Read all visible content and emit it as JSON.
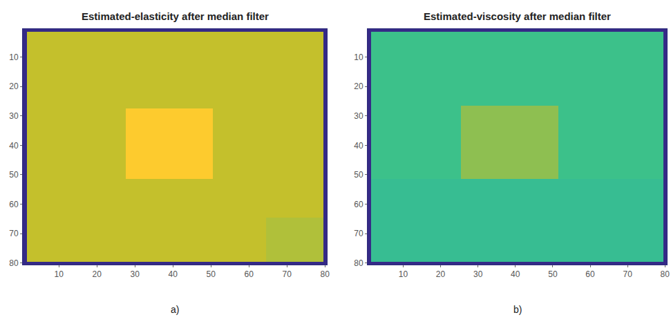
{
  "chart_data": [
    {
      "type": "heatmap",
      "title": "Estimated-elasticity after median filter",
      "panel": "a)",
      "color": "parula",
      "x": [
        0.5,
        1.5,
        27.5,
        50.5,
        64.5,
        79.5,
        80.5
      ],
      "y": [
        0.5,
        1.5,
        27.5,
        51.5,
        64.5,
        79.5,
        80.5
      ],
      "z": [
        [
          0,
          0,
          0,
          0,
          0,
          0
        ],
        [
          0,
          0.72,
          0.72,
          0.72,
          0.72,
          0
        ],
        [
          0,
          0.72,
          0.88,
          0.72,
          0.72,
          0
        ],
        [
          0,
          0.72,
          0.72,
          0.72,
          0.72,
          0
        ],
        [
          0,
          0.72,
          0.72,
          0.72,
          0.69,
          0
        ],
        [
          0,
          0,
          0,
          0,
          0,
          0
        ]
      ],
      "zlim": [
        0,
        1
      ],
      "xlim": [
        0.5,
        80.5
      ],
      "ylim": [
        80.5,
        0.5
      ],
      "xticks": [
        10,
        20,
        30,
        40,
        50,
        60,
        70,
        80
      ],
      "yticks": [
        10,
        20,
        30,
        40,
        50,
        60,
        70,
        80
      ]
    },
    {
      "type": "heatmap",
      "title": "Estimated-viscosity after median filter",
      "panel": "b)",
      "color": "parula",
      "x": [
        0.5,
        1.5,
        25.5,
        51.5,
        79.5,
        80.5
      ],
      "y": [
        0.5,
        1.5,
        26.5,
        51.5,
        79.5,
        80.5
      ],
      "z": [
        [
          0,
          0,
          0,
          0,
          0
        ],
        [
          0,
          0.55,
          0.55,
          0.55,
          0
        ],
        [
          0,
          0.55,
          0.64,
          0.55,
          0
        ],
        [
          0,
          0.53,
          0.53,
          0.53,
          0
        ],
        [
          0,
          0,
          0,
          0,
          0
        ]
      ],
      "zlim": [
        0,
        1
      ],
      "xlim": [
        0.5,
        80.5
      ],
      "ylim": [
        80.5,
        0.5
      ],
      "xticks": [
        10,
        20,
        30,
        40,
        50,
        60,
        70,
        80
      ],
      "yticks": [
        10,
        20,
        30,
        40,
        50,
        60,
        70,
        80
      ]
    }
  ]
}
